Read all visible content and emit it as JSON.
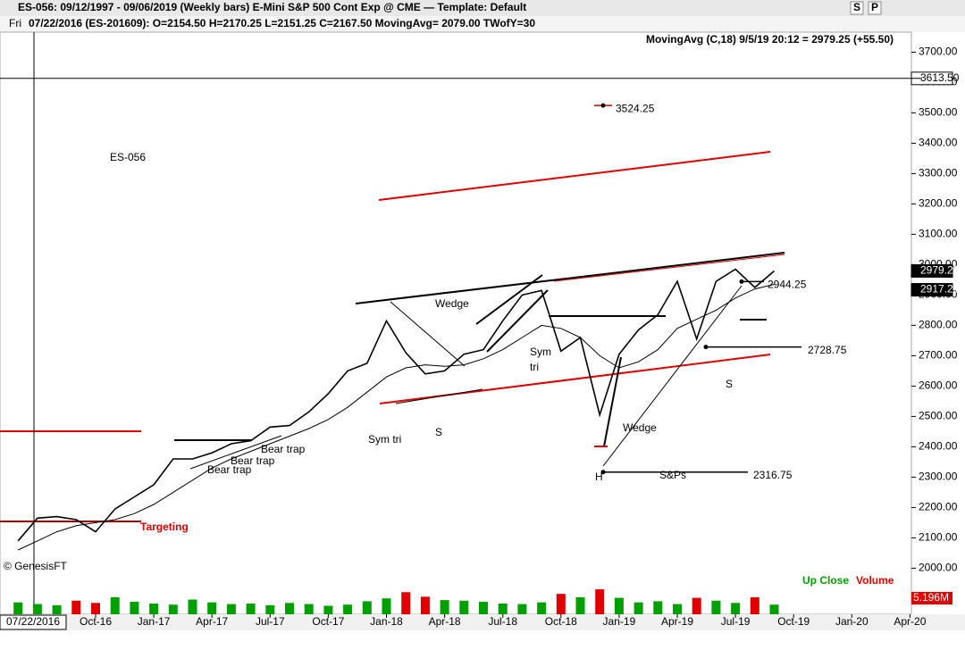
{
  "window": {
    "title": "ES-056:  09/12/1997 - 09/06/2019  (Weekly bars)   E-Mini S&P 500 Cont Exp @ CME  —  Template: Default",
    "buttons": [
      "S",
      "P"
    ],
    "day": "Fri",
    "status": "07/22/2016 (ES-201609):  O=2154.50  H=2170.25  L=2151.25  C=2167.50  MovingAvg= 2079.00  TWofY=30",
    "study": "MovingAvg (C,18)   9/5/19 20:12 = 2979.25 (+55.50)",
    "copyright": "© GenesisFT",
    "cursor_date": "07/22/2016",
    "legend": [
      "Up Close",
      "Volume"
    ]
  },
  "chart_data": [
    {
      "type": "line",
      "categories": [
        null,
        null,
        null,
        null,
        "Oct-16",
        null,
        null,
        "Jan-17",
        null,
        null,
        "Apr-17",
        null,
        null,
        "Jul-17",
        null,
        null,
        "Oct-17",
        null,
        null,
        "Jan-18",
        null,
        null,
        "Apr-18",
        null,
        null,
        "Jul-18",
        null,
        null,
        "Oct-18",
        null,
        null,
        "Jan-19",
        null,
        null,
        "Apr-19",
        null,
        null,
        "Jul-19",
        null,
        null,
        "Oct-19",
        null,
        null,
        "Jan-20",
        null,
        null,
        "Apr-20"
      ],
      "series": [
        {
          "color": "#000000",
          "values": [
            2090,
            2165,
            2170,
            2160,
            2120,
            2195,
            2235,
            2275,
            2360,
            2360,
            2380,
            2410,
            2420,
            2465,
            2470,
            2515,
            2575,
            2650,
            2675,
            2815,
            2710,
            2640,
            2650,
            2705,
            2720,
            2815,
            2900,
            2915,
            2715,
            2760,
            2505,
            2705,
            2785,
            2835,
            2945,
            2755,
            2945,
            2985,
            2925,
            2979.25,
            null,
            null,
            null,
            null,
            null,
            null,
            null
          ]
        },
        {
          "name": "MovingAvg",
          "color": "#000000",
          "values": [
            2060,
            2090,
            2120,
            2140,
            2150,
            2160,
            2180,
            2210,
            2250,
            2290,
            2330,
            2360,
            2385,
            2410,
            2435,
            2460,
            2490,
            2530,
            2580,
            2630,
            2660,
            2670,
            2665,
            2670,
            2690,
            2720,
            2760,
            2800,
            2790,
            2760,
            2700,
            2660,
            2680,
            2720,
            2790,
            2820,
            2850,
            2890,
            2920,
            2935,
            null,
            null,
            null,
            null,
            null,
            null,
            null
          ]
        }
      ],
      "ylim": [
        1960,
        3760
      ],
      "yticks": [
        {
          "value": 2000,
          "label": "2000.00"
        },
        {
          "value": 2100,
          "label": "2100.00"
        },
        {
          "value": 2200,
          "label": "2200.00"
        },
        {
          "value": 2300,
          "label": "2300.00"
        },
        {
          "value": 2400,
          "label": "2400.00"
        },
        {
          "value": 2500,
          "label": "2500.00"
        },
        {
          "value": 2600,
          "label": "2600.00"
        },
        {
          "value": 2700,
          "label": "2700.00"
        },
        {
          "value": 2800,
          "label": "2800.00"
        },
        {
          "value": 2900,
          "label": "2900.00"
        },
        {
          "value": 3000,
          "label": "3000.00"
        },
        {
          "value": 3100,
          "label": "3100.00"
        },
        {
          "value": 3200,
          "label": "3200.00"
        },
        {
          "value": 3300,
          "label": "3300.00"
        },
        {
          "value": 3400,
          "label": "3400.00"
        },
        {
          "value": 3500,
          "label": "3500.00"
        },
        {
          "value": 3600,
          "label": "3600.00"
        },
        {
          "value": 3700,
          "label": "3700.00"
        }
      ],
      "price_labels": [
        {
          "value": 3613.5,
          "label": "3613.50"
        },
        2979.25,
        2917.25
      ],
      "levels": [
        3524.25,
        2944.25,
        2728.75,
        2316.75
      ],
      "annotations": [
        "ES-056",
        "Wedge",
        "Sym tri",
        "S",
        "Bear trap",
        "Bear trap",
        "Bear trap",
        "Sym",
        "tri",
        "Wedge",
        "S",
        "H",
        "S&Ps",
        "Targeting"
      ]
    },
    {
      "type": "bar",
      "up_color": "#00a000",
      "down_color": "#e00000",
      "values": [
        2.1,
        1.8,
        1.6,
        2.4,
        2.0,
        3.0,
        2.2,
        1.9,
        1.7,
        2.6,
        2.1,
        1.8,
        1.9,
        1.6,
        2.0,
        1.8,
        1.5,
        1.7,
        2.3,
        2.8,
        3.9,
        3.1,
        2.5,
        2.4,
        2.2,
        1.9,
        1.8,
        2.1,
        3.6,
        3.0,
        4.4,
        2.9,
        2.1,
        2.3,
        1.8,
        2.9,
        2.4,
        2.0,
        3.0,
        1.7,
        null,
        null,
        null,
        null,
        null,
        null,
        null
      ],
      "ylim": [
        0,
        5.196
      ],
      "yticks": [
        {
          "value": 5.196,
          "label": "5.196M"
        }
      ]
    }
  ]
}
